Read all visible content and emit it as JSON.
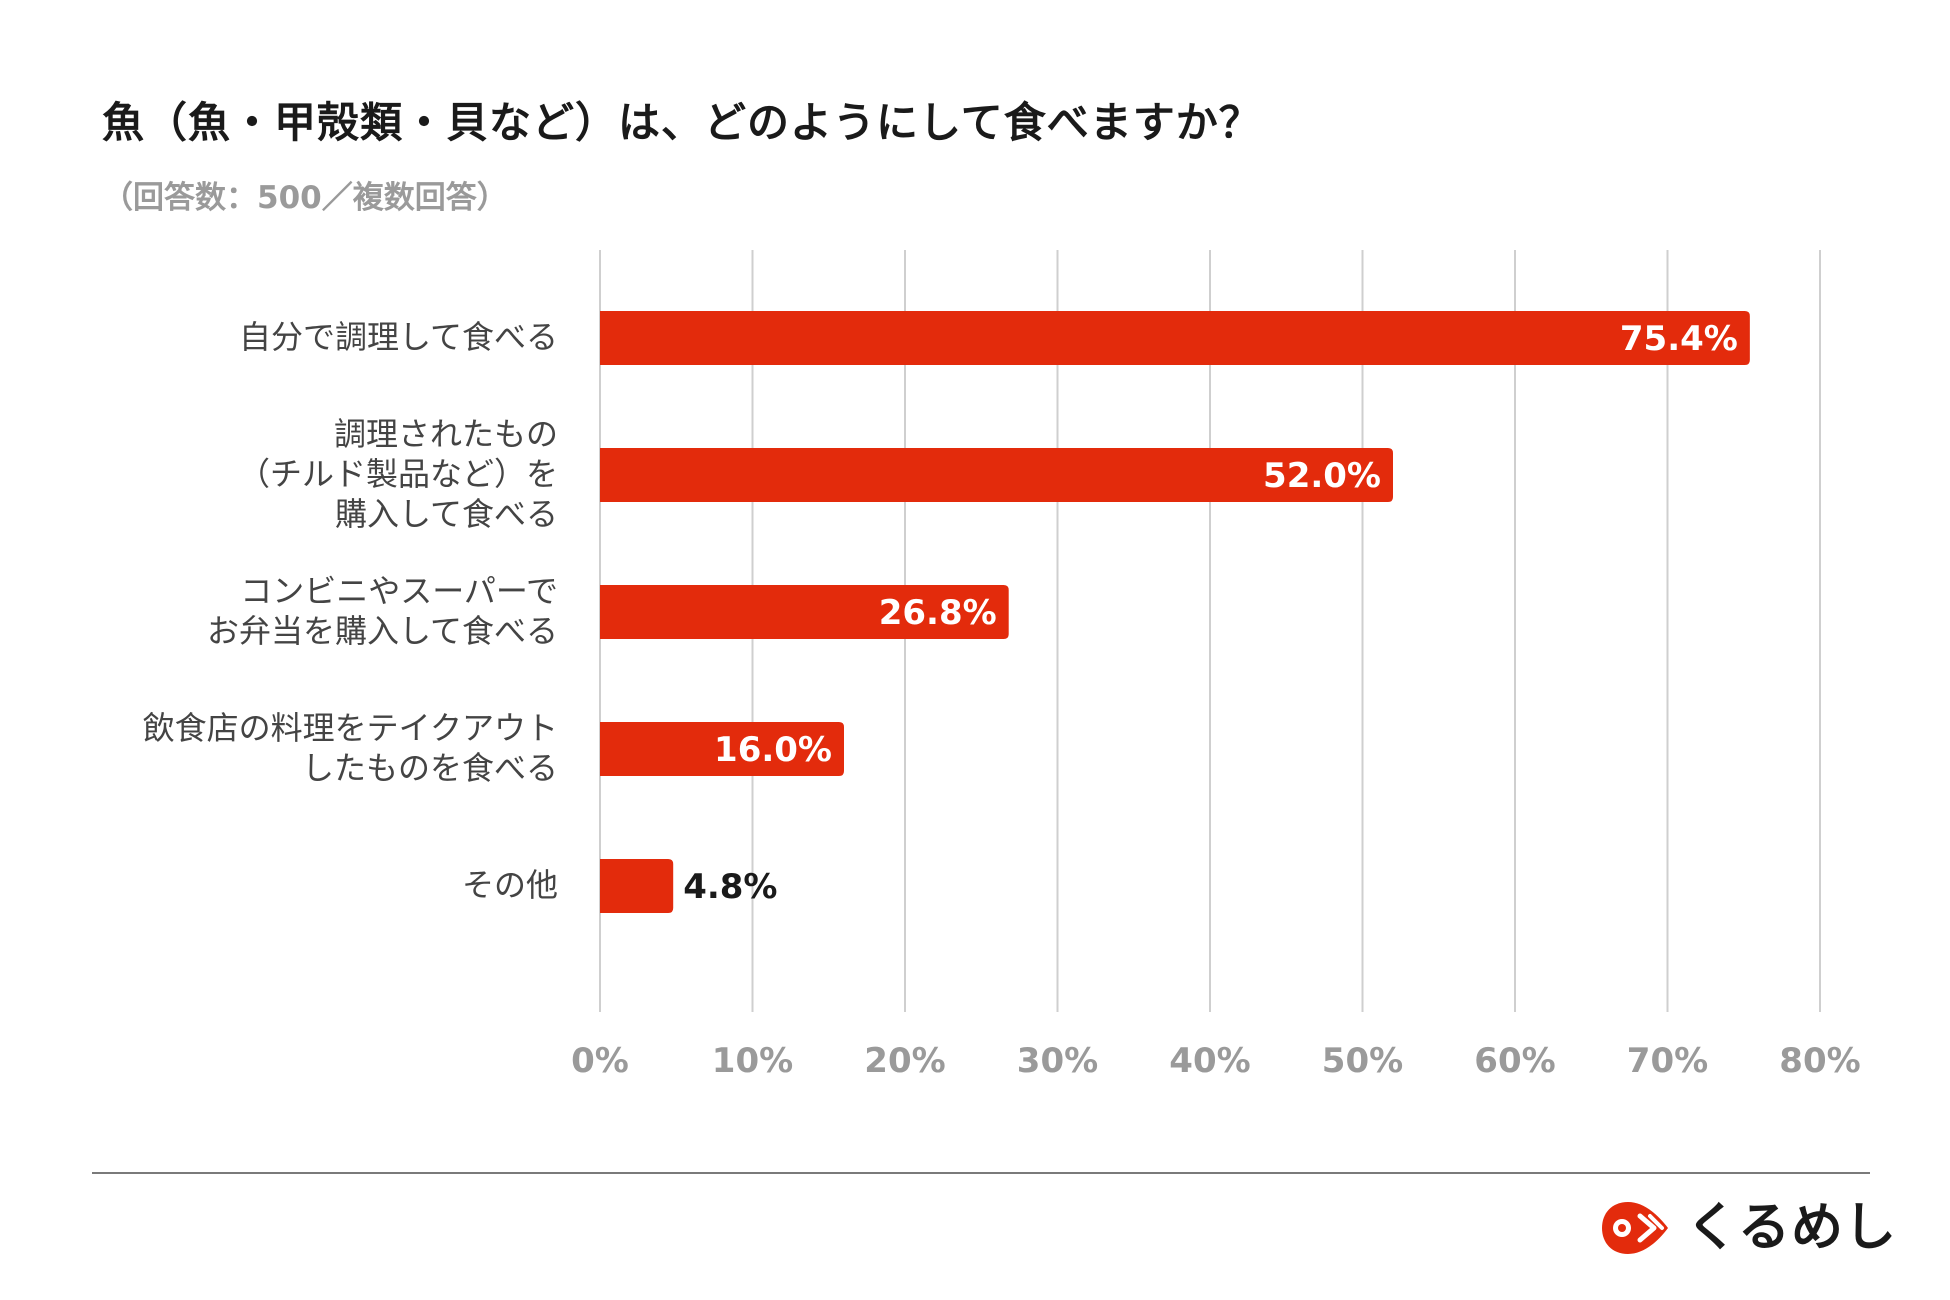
{
  "chart_data": {
    "type": "bar",
    "orientation": "horizontal",
    "title": "魚（魚・甲殻類・貝など）は、どのようにして食べますか？",
    "subtitle": "（回答数：500／複数回答）",
    "categories": [
      [
        "自分で調理して食べる"
      ],
      [
        "調理されたもの",
        "（チルド製品など）を",
        "購入して食べる"
      ],
      [
        "コンビニやスーパーで",
        "お弁当を購入して食べる"
      ],
      [
        "飲食店の料理をテイクアウト",
        "したものを食べる"
      ],
      [
        "その他"
      ]
    ],
    "values": [
      75.4,
      52.0,
      26.8,
      16.0,
      4.8
    ],
    "data_labels": [
      "75.4%",
      "52.0%",
      "26.8%",
      "16.0%",
      "4.8%"
    ],
    "xlim": [
      0,
      80
    ],
    "ticks": [
      0,
      10,
      20,
      30,
      40,
      50,
      60,
      70,
      80
    ],
    "tick_labels": [
      "0%",
      "10%",
      "20%",
      "30%",
      "40%",
      "50%",
      "60%",
      "70%",
      "80%"
    ],
    "grid": true,
    "legend": "none"
  },
  "colors": {
    "bar": "#e32b0c",
    "grid": "#cfcfcf",
    "tick_label": "#9a9a9a",
    "category_label": "#444444",
    "value_label_inside": "#ffffff",
    "value_label_outside": "#1a1a1a"
  },
  "brand": {
    "name": "くるめし",
    "icon": "kurumeshi-logo-icon"
  }
}
